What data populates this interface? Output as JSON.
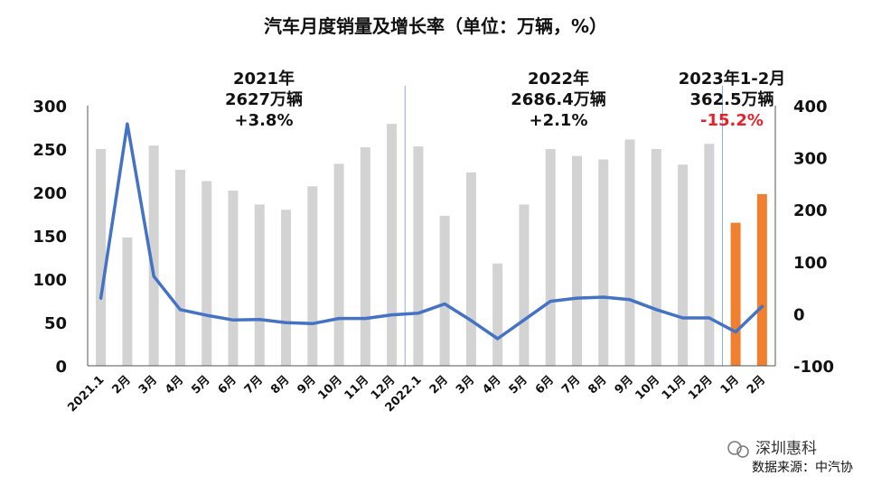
{
  "chart_data": {
    "type": "bar",
    "title": "汽车月度销量及增长率（单位：万辆，%）",
    "categories": [
      "2021.1",
      "2月",
      "3月",
      "4月",
      "5月",
      "6月",
      "7月",
      "8月",
      "9月",
      "10月",
      "11月",
      "12月",
      "2022.1",
      "2月",
      "3月",
      "4月",
      "5月",
      "6月",
      "7月",
      "8月",
      "9月",
      "10月",
      "11月",
      "12月",
      "1月",
      "2月"
    ],
    "series": [
      {
        "values": [
          250,
          148,
          254,
          226,
          213,
          202,
          186,
          180,
          207,
          233,
          252,
          279,
          253,
          173,
          223,
          118,
          186,
          250,
          242,
          238,
          261,
          250,
          232,
          256,
          165,
          198
        ],
        "axis": "left",
        "colors_by_group": {
          "2021-2022": "#d3d3d3",
          "2023": "#f08030"
        }
      },
      {
        "values": [
          30,
          365,
          72,
          8,
          -3,
          -12,
          -11,
          -17,
          -19,
          -9,
          -9,
          -2,
          1,
          19,
          -13,
          -48,
          -12,
          24,
          30,
          32,
          27,
          8,
          -8,
          -8,
          -35,
          14
        ],
        "axis": "right",
        "type": "line",
        "color": "#4472c4"
      }
    ],
    "y_left": {
      "min": 0,
      "max": 300,
      "ticks": [
        "0",
        "50",
        "100",
        "150",
        "200",
        "250",
        "300"
      ]
    },
    "y_right": {
      "min": -100,
      "max": 400,
      "ticks": [
        "-100",
        "0",
        "100",
        "200",
        "300",
        "400"
      ]
    },
    "separators_after_index": [
      11,
      23
    ],
    "annotations": [
      {
        "lines": [
          "2021年",
          "2627万辆",
          "+3.8%"
        ]
      },
      {
        "lines": [
          "2022年",
          "2686.4万辆",
          "+2.1%"
        ]
      },
      {
        "lines": [
          "2023年1-2月",
          "362.5万辆",
          "-15.2%"
        ],
        "last_color": "#e8202a"
      }
    ],
    "grid": false,
    "legend": "none"
  },
  "footer": {
    "brand": "深圳惠科",
    "source": "数据来源：中汽协"
  }
}
